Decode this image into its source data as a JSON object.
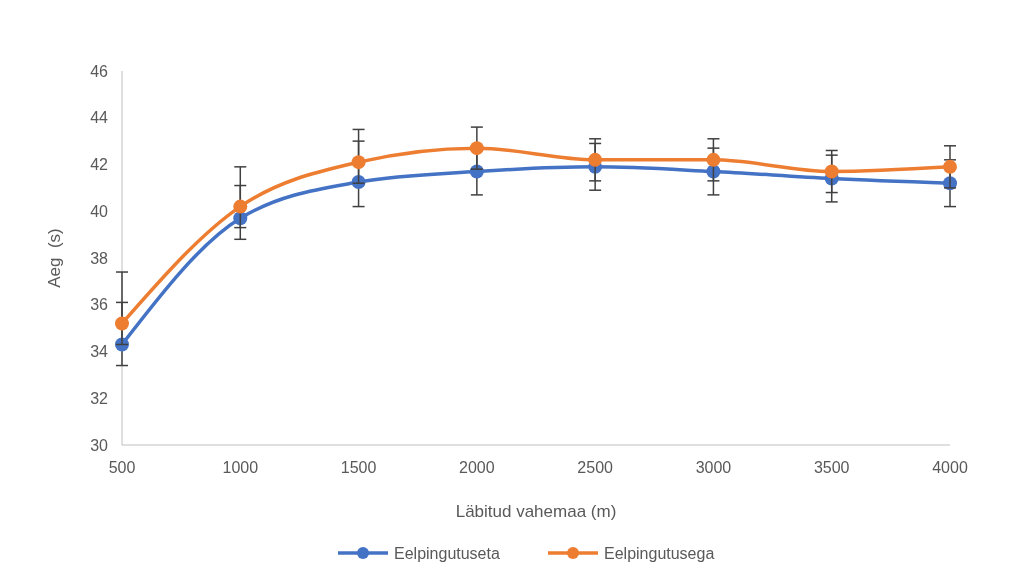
{
  "chart_data": {
    "type": "line",
    "xlabel": "Läbitud vahemaa (m)",
    "ylabel": "Aeg  (s)",
    "x": [
      500,
      1000,
      1500,
      2000,
      2500,
      3000,
      3500,
      4000
    ],
    "xlim": [
      500,
      4000
    ],
    "xticks": [
      500,
      1000,
      1500,
      2000,
      2500,
      3000,
      3500,
      4000
    ],
    "ylim": [
      30,
      46
    ],
    "yticks": [
      30,
      32,
      34,
      36,
      38,
      40,
      42,
      44,
      46
    ],
    "marker": "circle",
    "legend": "bottom",
    "grid": false,
    "series": [
      {
        "name": "Eelpingutuseta",
        "color": "#4472c4",
        "values": [
          34.3,
          39.7,
          41.25,
          41.7,
          41.9,
          41.7,
          41.4,
          41.2
        ],
        "errors": [
          [
            33.4,
            37.4
          ],
          [
            38.8,
            41.9
          ],
          [
            40.2,
            43.5
          ],
          1.0,
          1.0,
          1.0,
          1.0,
          1.0
        ]
      },
      {
        "name": "Eelpingutusega",
        "color": "#ed7d31",
        "values": [
          35.2,
          40.2,
          42.1,
          42.7,
          42.2,
          42.2,
          41.7,
          41.9
        ],
        "errors": [
          0.9,
          0.9,
          0.9,
          0.9,
          0.9,
          0.9,
          0.9,
          0.9
        ]
      }
    ]
  }
}
